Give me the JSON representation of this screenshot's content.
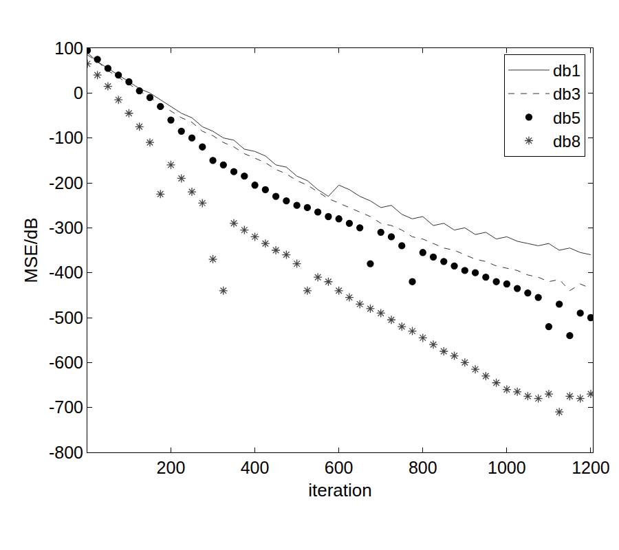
{
  "chart_data": {
    "type": "line",
    "x_label": "iteration",
    "y_label": "MSE/dB",
    "x": [
      1,
      25,
      50,
      75,
      100,
      125,
      150,
      175,
      200,
      225,
      250,
      275,
      300,
      325,
      350,
      375,
      400,
      425,
      450,
      475,
      500,
      525,
      550,
      575,
      600,
      625,
      650,
      675,
      700,
      725,
      750,
      775,
      800,
      825,
      850,
      875,
      900,
      925,
      950,
      975,
      1000,
      1025,
      1050,
      1075,
      1100,
      1125,
      1150,
      1175,
      1200
    ],
    "series": [
      {
        "name": "db1",
        "type": "line",
        "line_style": "solid",
        "color": "#333333",
        "values": [
          90,
          70,
          55,
          40,
          25,
          10,
          0,
          -15,
          -30,
          -45,
          -55,
          -75,
          -85,
          -100,
          -105,
          -125,
          -130,
          -140,
          -160,
          -165,
          -185,
          -195,
          -215,
          -230,
          -205,
          -215,
          -230,
          -240,
          -255,
          -250,
          -270,
          -280,
          -275,
          -295,
          -290,
          -305,
          -300,
          -315,
          -310,
          -325,
          -320,
          -330,
          -335,
          -340,
          -335,
          -350,
          -345,
          -355,
          -360
        ]
      },
      {
        "name": "db3",
        "type": "line",
        "line_style": "dashed",
        "color": "#333333",
        "values": [
          85,
          70,
          50,
          35,
          20,
          5,
          -10,
          -25,
          -40,
          -55,
          -65,
          -85,
          -95,
          -110,
          -120,
          -135,
          -145,
          -155,
          -170,
          -180,
          -195,
          -205,
          -220,
          -235,
          -245,
          -255,
          -265,
          -275,
          -290,
          -295,
          -305,
          -320,
          -325,
          -335,
          -345,
          -350,
          -360,
          -370,
          -375,
          -385,
          -390,
          -395,
          -405,
          -410,
          -420,
          -415,
          -440,
          -425,
          -435
        ]
      },
      {
        "name": "db5",
        "type": "scatter",
        "marker": "circle",
        "color": "#000000",
        "values": [
          95,
          75,
          55,
          40,
          25,
          5,
          -10,
          -30,
          -60,
          -85,
          -100,
          -120,
          -150,
          -160,
          -175,
          -185,
          -205,
          -215,
          -230,
          -240,
          -250,
          -255,
          -265,
          -275,
          -280,
          -290,
          -300,
          -380,
          -310,
          -320,
          -340,
          -420,
          -355,
          -365,
          -375,
          -385,
          -395,
          -400,
          -410,
          -420,
          -425,
          -435,
          -445,
          -455,
          -520,
          -470,
          -540,
          -490,
          -500
        ]
      },
      {
        "name": "db8",
        "type": "scatter",
        "marker": "star",
        "color": "#444444",
        "values": [
          65,
          40,
          15,
          -15,
          -45,
          -75,
          -110,
          -225,
          -160,
          -190,
          -220,
          -245,
          -370,
          -440,
          -290,
          -305,
          -320,
          -335,
          -350,
          -360,
          -380,
          -440,
          -410,
          -420,
          -440,
          -455,
          -470,
          -480,
          -490,
          -505,
          -520,
          -530,
          -545,
          -560,
          -575,
          -585,
          -600,
          -615,
          -630,
          -645,
          -660,
          -665,
          -675,
          -680,
          -670,
          -710,
          -675,
          -680,
          -670
        ]
      }
    ],
    "xlim": [
      1,
      1205
    ],
    "xticks": [
      200,
      400,
      600,
      800,
      1000,
      1200
    ],
    "ylim": [
      -800,
      100
    ],
    "yticks": [
      -800,
      -700,
      -600,
      -500,
      -400,
      -300,
      -200,
      -100,
      0,
      100
    ],
    "grid": false,
    "legend": "upper right"
  }
}
